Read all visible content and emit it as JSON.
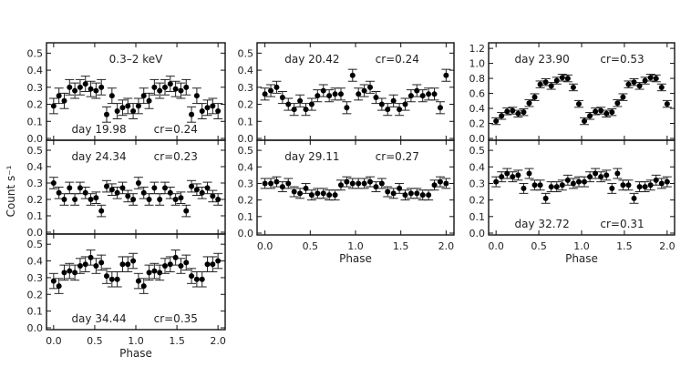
{
  "chart_data": {
    "type": "scatter",
    "ylabel": "Count s⁻¹",
    "xlabel": "Phase",
    "xlim": [
      0,
      2
    ],
    "xticks": [
      "0.0",
      "0.5",
      "1.0",
      "1.5",
      "2.0"
    ],
    "band_label": "0.3–2 keV",
    "panels": [
      {
        "day": "day  19.98",
        "cr": "cr=0.24",
        "ylim": [
          0,
          0.55
        ],
        "yticks": [
          "0.0",
          "0.1",
          "0.2",
          "0.3",
          "0.4",
          "0.5"
        ],
        "err": 0.045,
        "values": [
          0.19,
          0.25,
          0.22,
          0.3,
          0.28,
          0.3,
          0.32,
          0.29,
          0.28,
          0.3,
          0.14,
          0.25,
          0.16,
          0.18,
          0.19,
          0.16
        ]
      },
      {
        "day": "day  24.34",
        "cr": "cr=0.23",
        "ylim": [
          0,
          0.55
        ],
        "yticks": [
          "0.0",
          "0.1",
          "0.2",
          "0.3",
          "0.4",
          "0.5"
        ],
        "err": 0.035,
        "values": [
          0.3,
          0.24,
          0.2,
          0.27,
          0.2,
          0.27,
          0.24,
          0.2,
          0.21,
          0.13,
          0.28,
          0.26,
          0.24,
          0.27,
          0.22,
          0.2
        ]
      },
      {
        "day": "day  34.44",
        "cr": "cr=0.35",
        "ylim": [
          0,
          0.55
        ],
        "yticks": [
          "0.0",
          "0.1",
          "0.2",
          "0.3",
          "0.4",
          "0.5"
        ],
        "err": 0.045,
        "values": [
          0.28,
          0.25,
          0.33,
          0.34,
          0.33,
          0.37,
          0.38,
          0.42,
          0.37,
          0.39,
          0.31,
          0.29,
          0.29,
          0.38,
          0.38,
          0.4
        ]
      },
      {
        "day": "day  20.42",
        "cr": "cr=0.24",
        "ylim": [
          0,
          0.55
        ],
        "yticks": [
          "0.0",
          "0.1",
          "0.2",
          "0.3",
          "0.4",
          "0.5"
        ],
        "err": 0.035,
        "values": [
          0.26,
          0.28,
          0.3,
          0.24,
          0.2,
          0.17,
          0.22,
          0.17,
          0.2,
          0.25,
          0.28,
          0.25,
          0.26,
          0.26,
          0.18,
          0.37
        ]
      },
      {
        "day": "day  29.11",
        "cr": "cr=0.27",
        "ylim": [
          0,
          0.55
        ],
        "yticks": [
          "0.0",
          "0.1",
          "0.2",
          "0.3",
          "0.4",
          "0.5"
        ],
        "err": 0.03,
        "values": [
          0.3,
          0.3,
          0.31,
          0.28,
          0.3,
          0.25,
          0.24,
          0.27,
          0.23,
          0.24,
          0.24,
          0.23,
          0.23,
          0.29,
          0.31,
          0.3
        ]
      },
      {
        "day": "day  23.90",
        "cr": "cr=0.53",
        "ylim": [
          0,
          1.25
        ],
        "yticks": [
          "0.0",
          "0.2",
          "0.4",
          "0.6",
          "0.8",
          "1.0",
          "1.2"
        ],
        "err": 0.045,
        "values": [
          0.23,
          0.3,
          0.36,
          0.37,
          0.33,
          0.35,
          0.47,
          0.55,
          0.72,
          0.75,
          0.7,
          0.77,
          0.81,
          0.8,
          0.68,
          0.46
        ]
      },
      {
        "day": "day  32.72",
        "cr": "cr=0.31",
        "ylim": [
          0,
          0.55
        ],
        "yticks": [
          "0.0",
          "0.1",
          "0.2",
          "0.3",
          "0.4",
          "0.5"
        ],
        "err": 0.03,
        "values": [
          0.31,
          0.34,
          0.36,
          0.34,
          0.35,
          0.27,
          0.36,
          0.29,
          0.29,
          0.21,
          0.28,
          0.28,
          0.29,
          0.32,
          0.3,
          0.31
        ]
      }
    ]
  }
}
